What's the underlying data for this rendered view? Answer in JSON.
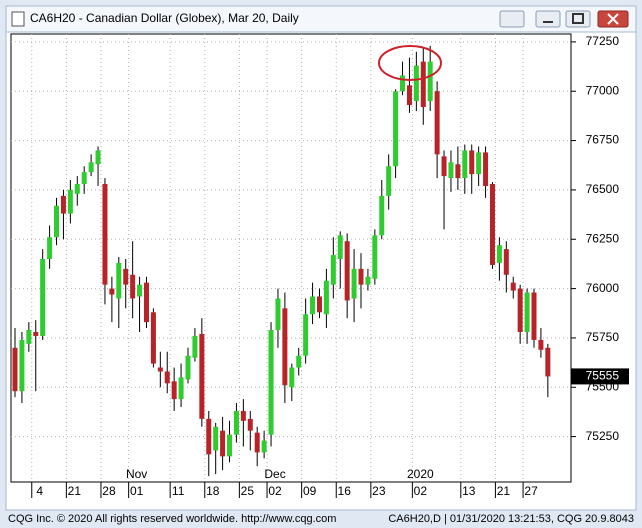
{
  "window_title": "CA6H20 - Canadian Dollar (Globex), Mar 20, Daily",
  "footer": {
    "left": "CQG Inc. © 2020 All rights reserved worldwide. http://www.cqg.com",
    "right": "CA6H20,D | 01/31/2020 13:21:53, CQG 20.9.8043"
  },
  "chart_data": {
    "type": "candlestick",
    "categories": [
      null,
      null,
      null,
      "4",
      null,
      null,
      null,
      null,
      "21",
      null,
      null,
      null,
      null,
      "28",
      null,
      null,
      null,
      "01",
      null,
      null,
      null,
      null,
      null,
      "11",
      null,
      null,
      null,
      null,
      "18",
      null,
      null,
      null,
      null,
      "25",
      null,
      null,
      null,
      "02",
      null,
      null,
      null,
      null,
      "09",
      null,
      null,
      null,
      null,
      "16",
      null,
      null,
      null,
      null,
      "23",
      null,
      null,
      null,
      null,
      null,
      "02",
      null,
      null,
      null,
      null,
      null,
      null,
      "13",
      null,
      null,
      null,
      null,
      "21",
      null,
      null,
      null,
      "27",
      null,
      null,
      null
    ],
    "month_labels": [
      {
        "label": "Nov",
        "index": 17
      },
      {
        "label": "Dec",
        "index": 37
      },
      {
        "label": "2020",
        "index": 58
      }
    ],
    "open": [
      75700,
      75480,
      75720,
      75780,
      75760,
      76150,
      76260,
      76470,
      76380,
      76480,
      76530,
      76590,
      76630,
      76530,
      76000,
      75950,
      76100,
      76070,
      75960,
      76030,
      75880,
      75600,
      75580,
      75530,
      75440,
      75540,
      75650,
      75770,
      75340,
      75180,
      75280,
      75150,
      75260,
      75380,
      75340,
      75270,
      75170,
      75260,
      75790,
      75900,
      75500,
      75600,
      75660,
      75870,
      75960,
      75870,
      76020,
      76150,
      76240,
      75950,
      76100,
      76020,
      76050,
      76270,
      76470,
      76620,
      77000,
      77030,
      76950,
      77150,
      76950,
      77000,
      76670,
      76560,
      76630,
      76560,
      76700,
      76580,
      76690,
      76530,
      76130,
      76200,
      76030,
      76000,
      75780,
      75980,
      75740,
      75700
    ],
    "high": [
      75800,
      75780,
      75830,
      75840,
      76200,
      76320,
      76460,
      76500,
      76550,
      76570,
      76620,
      76680,
      76720,
      76560,
      76060,
      76160,
      76150,
      76240,
      76060,
      76060,
      75900,
      75680,
      75680,
      75600,
      75620,
      75700,
      75800,
      75850,
      75380,
      75320,
      75350,
      75330,
      75420,
      75440,
      75380,
      75300,
      75280,
      75830,
      76000,
      75980,
      75620,
      75700,
      75950,
      76030,
      76000,
      76100,
      76260,
      76290,
      76280,
      76200,
      76180,
      76100,
      76300,
      76550,
      76680,
      77010,
      77150,
      77170,
      77200,
      77220,
      77230,
      77050,
      76700,
      76700,
      76720,
      76730,
      76730,
      76720,
      76720,
      76540,
      76260,
      76240,
      76060,
      76020,
      76000,
      76000,
      75800,
      75720
    ],
    "low": [
      75450,
      75420,
      75680,
      75480,
      75740,
      76100,
      76220,
      76250,
      76330,
      76420,
      76480,
      76570,
      76520,
      75920,
      75830,
      75800,
      75900,
      75850,
      75780,
      75800,
      75600,
      75500,
      75470,
      75380,
      75400,
      75520,
      75630,
      75300,
      75050,
      75060,
      75080,
      75120,
      75220,
      75200,
      75180,
      75100,
      75140,
      75200,
      75700,
      75420,
      75430,
      75560,
      75620,
      75820,
      75850,
      75800,
      75950,
      76000,
      75850,
      75830,
      75900,
      75990,
      76020,
      76250,
      76400,
      76560,
      76980,
      76890,
      76900,
      76830,
      76900,
      76560,
      76300,
      76490,
      76500,
      76480,
      76480,
      76520,
      76460,
      76100,
      76040,
      75980,
      75950,
      75720,
      75720,
      75700,
      75650,
      75450
    ],
    "close": [
      75480,
      75740,
      75790,
      75760,
      76150,
      76260,
      76420,
      76380,
      76500,
      76530,
      76590,
      76640,
      76700,
      76020,
      75970,
      76130,
      76020,
      75950,
      76020,
      75830,
      75620,
      75580,
      75520,
      75440,
      75550,
      75660,
      75760,
      75340,
      75160,
      75300,
      75150,
      75260,
      75380,
      75330,
      75280,
      75170,
      75230,
      75790,
      75950,
      75510,
      75600,
      75660,
      75870,
      75960,
      75880,
      76040,
      76170,
      76270,
      75940,
      76100,
      76020,
      76060,
      76270,
      76470,
      76620,
      77000,
      77080,
      76930,
      77130,
      76920,
      77150,
      76680,
      76570,
      76640,
      76560,
      76700,
      76580,
      76690,
      76520,
      76120,
      76220,
      76070,
      75990,
      75780,
      75980,
      75740,
      75690,
      75555
    ],
    "up_color": "#2ecc2e",
    "down_color": "#b8232a",
    "last_price": 75555,
    "ylim": [
      75020,
      77290
    ],
    "yticks": [
      75250,
      75500,
      75750,
      76000,
      76250,
      76500,
      76750,
      77000,
      77250
    ],
    "grid": true
  }
}
